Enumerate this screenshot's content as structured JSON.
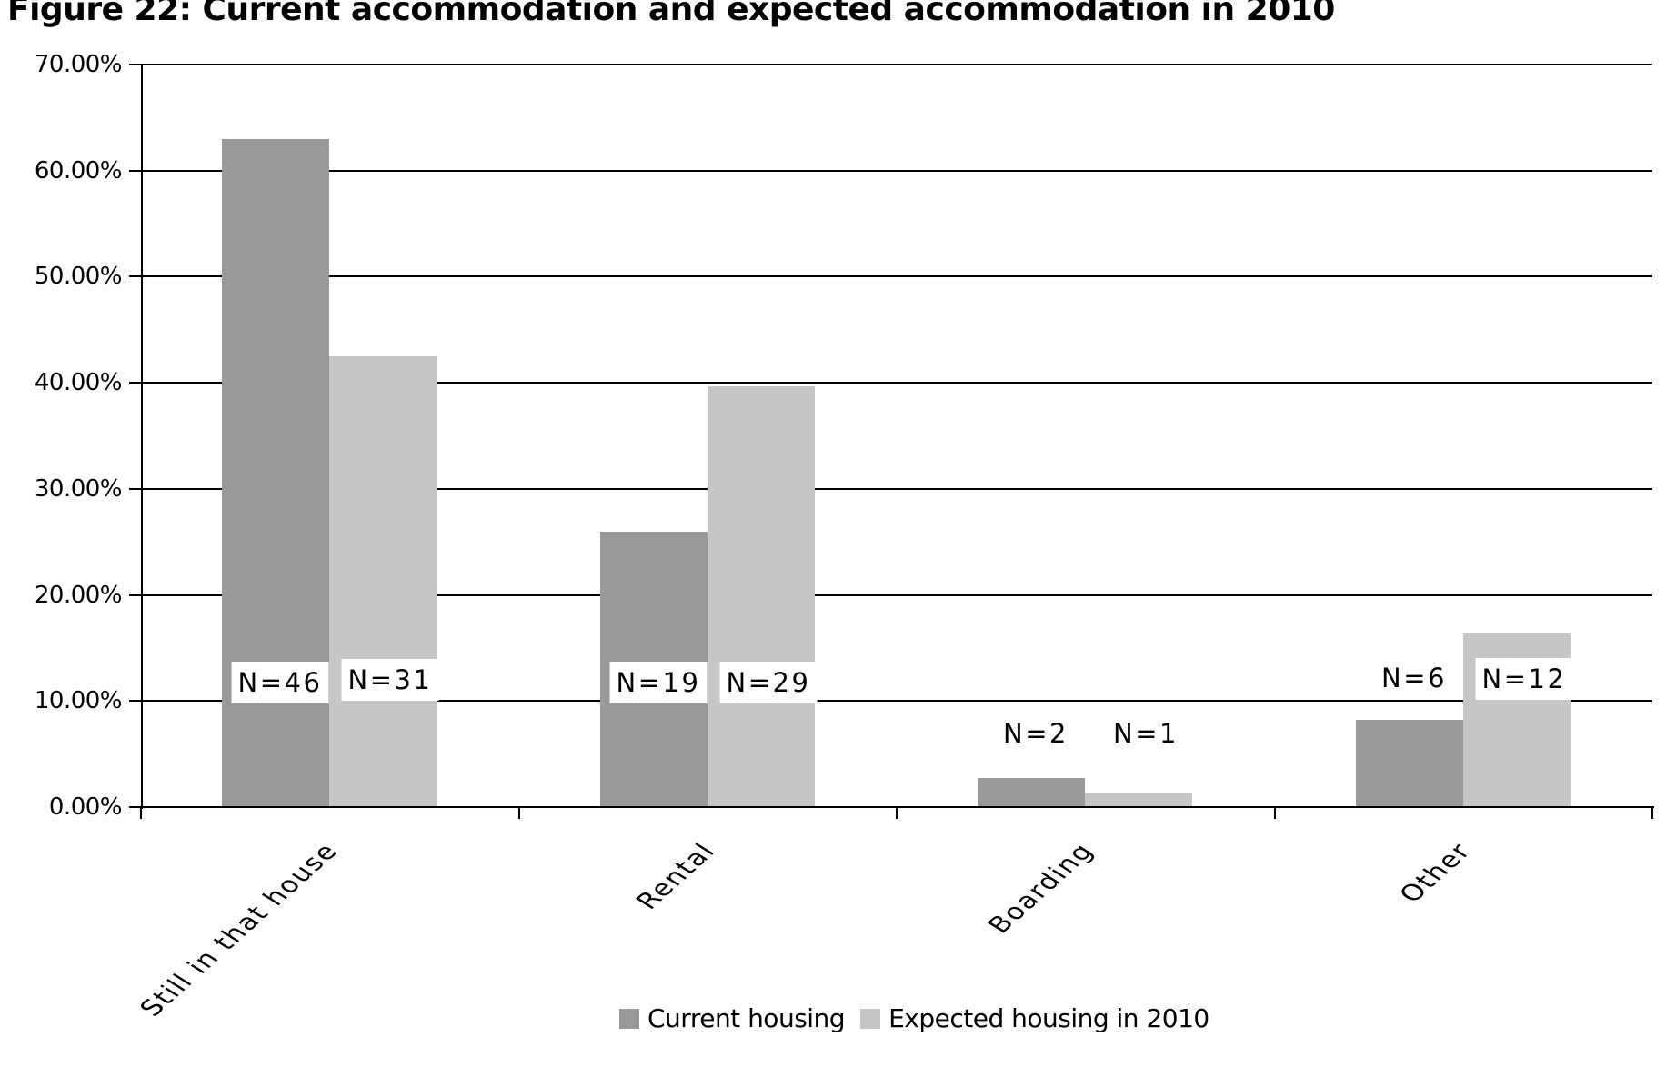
{
  "title": "Figure 22: Current accommodation and expected accommodation in 2010",
  "colors": {
    "current_series": "#999999",
    "expected_series": "#c6c6c6",
    "bar_shadow": "#808080",
    "axis_and_grid": "#000000",
    "label_box_bg": "#ffffff",
    "text": "#000000",
    "background": "#ffffff"
  },
  "chart_data": {
    "type": "bar",
    "title": "Figure 22: Current accommodation and expected accommodation in 2010",
    "categories": [
      "Still in that house",
      "Rental",
      "Boarding",
      "Other"
    ],
    "series": [
      {
        "name": "Current housing",
        "color": "#999999",
        "values_pct": [
          63.0,
          26.0,
          2.7,
          8.2
        ],
        "n_values": [
          46,
          19,
          2,
          6
        ],
        "n_labels": [
          "N=46",
          "N=19",
          "N=2",
          "N=6"
        ],
        "label_y_pct": [
          11.7,
          11.75,
          6.9,
          12.2
        ]
      },
      {
        "name": "Expected housing in 2010",
        "color": "#c6c6c6",
        "values_pct": [
          42.5,
          39.7,
          1.4,
          16.4
        ],
        "n_values": [
          31,
          29,
          1,
          12
        ],
        "n_labels": [
          "N=31",
          "N=29",
          "N=1",
          "N=12"
        ],
        "label_y_pct": [
          12.0,
          11.75,
          6.9,
          12.1
        ]
      }
    ],
    "xlabel": "",
    "ylabel": "",
    "ylim": [
      0,
      70
    ],
    "ytick_step": 10,
    "ytick_labels": [
      "0.00%",
      "10.00%",
      "20.00%",
      "30.00%",
      "40.00%",
      "50.00%",
      "60.00%",
      "70.00%"
    ],
    "grid": true,
    "legend_position": "bottom"
  }
}
